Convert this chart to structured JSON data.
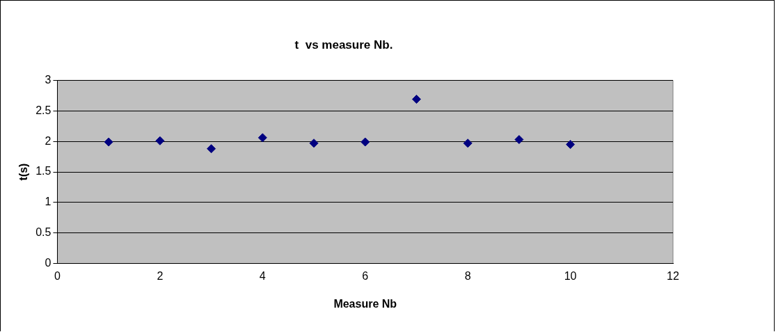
{
  "chart_data": {
    "type": "scatter",
    "title": "t  vs measure Nb.",
    "xlabel": "Measure Nb",
    "ylabel": "t(s)",
    "x": [
      1,
      2,
      3,
      4,
      5,
      6,
      7,
      8,
      9,
      10
    ],
    "series": [
      {
        "color": "#000080",
        "values": [
          1.99,
          2.01,
          1.88,
          2.06,
          1.97,
          1.99,
          2.69,
          1.97,
          2.03,
          1.95
        ]
      }
    ],
    "xlim": [
      0,
      12
    ],
    "xticks": [
      0,
      2,
      4,
      6,
      8,
      10,
      12
    ],
    "ylim": [
      0,
      3
    ],
    "yticks": [
      0,
      0.5,
      1,
      1.5,
      2,
      2.5,
      3
    ],
    "grid": "y",
    "legend": false,
    "marker": "diamond"
  }
}
